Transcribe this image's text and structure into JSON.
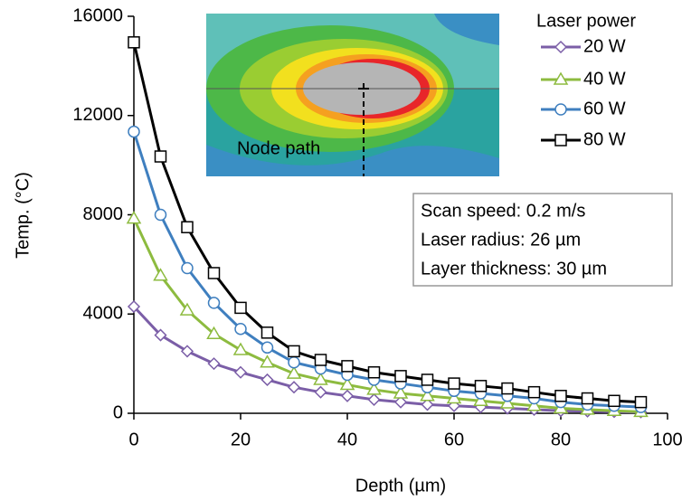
{
  "chart_data": {
    "type": "line",
    "x": [
      0,
      5,
      10,
      15,
      20,
      25,
      30,
      35,
      40,
      45,
      50,
      55,
      60,
      65,
      70,
      75,
      80,
      85,
      90,
      95
    ],
    "series": [
      {
        "name": "20 W",
        "color": "#7b5ea7",
        "marker": "diamond",
        "values": [
          4300,
          3150,
          2500,
          2000,
          1650,
          1350,
          1050,
          850,
          700,
          550,
          450,
          350,
          300,
          250,
          200,
          150,
          100,
          80,
          60,
          50
        ]
      },
      {
        "name": "40 W",
        "color": "#8dbb3f",
        "marker": "triangle",
        "values": [
          7850,
          5550,
          4150,
          3200,
          2550,
          2050,
          1600,
          1350,
          1150,
          950,
          800,
          700,
          600,
          500,
          400,
          300,
          200,
          150,
          100,
          60
        ]
      },
      {
        "name": "60 W",
        "color": "#3f7fbf",
        "marker": "circle",
        "values": [
          11350,
          8000,
          5850,
          4450,
          3400,
          2650,
          2050,
          1800,
          1550,
          1350,
          1200,
          1050,
          900,
          800,
          700,
          600,
          450,
          350,
          300,
          250
        ]
      },
      {
        "name": "80 W",
        "color": "#000000",
        "marker": "square",
        "values": [
          14950,
          10350,
          7500,
          5650,
          4250,
          3250,
          2500,
          2150,
          1900,
          1650,
          1500,
          1350,
          1200,
          1100,
          1000,
          850,
          700,
          600,
          500,
          450
        ]
      }
    ],
    "xlim": [
      0,
      100
    ],
    "xticks": [
      0,
      20,
      40,
      60,
      80,
      100
    ],
    "ylim": [
      0,
      16000
    ],
    "yticks": [
      0,
      4000,
      8000,
      12000,
      16000
    ],
    "xlabel": "Depth (µm)",
    "ylabel": "Temp. (°C)",
    "legend_title": "Laser power",
    "annotations": [
      "Scan speed: 0.2 m/s",
      "Laser radius: 26 µm",
      "Layer thickness: 30 µm"
    ],
    "inset_label": "Node path"
  }
}
